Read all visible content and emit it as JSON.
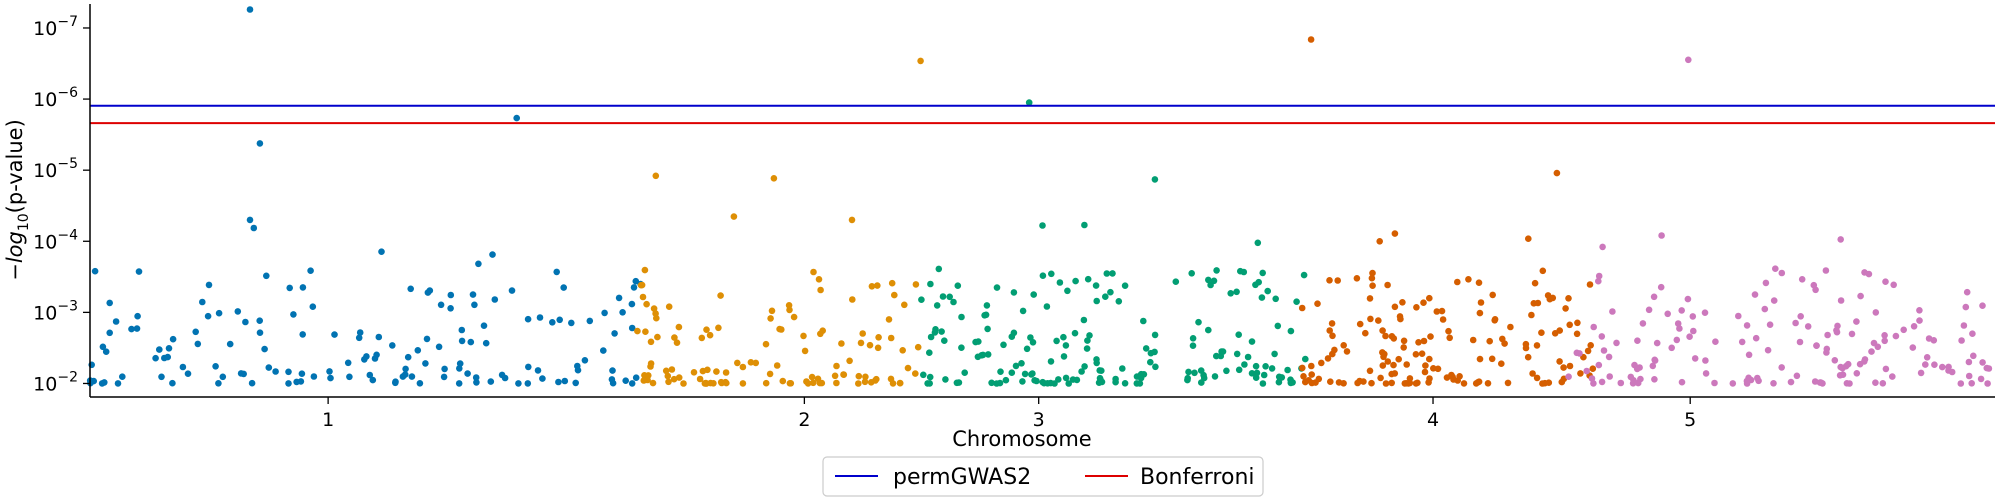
{
  "chart_data": {
    "type": "scatter",
    "title": "",
    "xlabel": "Chromosome",
    "ylabel_prefix": "−",
    "ylabel_log": "log",
    "ylabel_sub": "10",
    "ylabel_suffix": "(p-value)",
    "x_ticks": [
      {
        "label": "1",
        "pos": 0.125
      },
      {
        "label": "2",
        "pos": 0.375
      },
      {
        "label": "3",
        "pos": 0.498
      },
      {
        "label": "4",
        "pos": 0.705
      },
      {
        "label": "5",
        "pos": 0.84
      }
    ],
    "y_ticks": [
      {
        "value": 1e-07,
        "base": "10",
        "exp": "−7"
      },
      {
        "value": 1e-06,
        "base": "10",
        "exp": "−6"
      },
      {
        "value": 1e-05,
        "base": "10",
        "exp": "−5"
      },
      {
        "value": 0.0001,
        "base": "10",
        "exp": "−4"
      },
      {
        "value": 0.001,
        "base": "10",
        "exp": "−3"
      },
      {
        "value": 0.01,
        "base": "10",
        "exp": "−2"
      }
    ],
    "ylim": [
      0.0155,
      4.6e-08
    ],
    "ylog": true,
    "grid": false,
    "legend_position": "bottom-center",
    "series": [
      {
        "chromosome": "1",
        "color": "#0173b2",
        "range": [
          0.0,
          0.29
        ],
        "n": 150,
        "seed": 11,
        "extra": [
          [
            0.084,
            5.5e-08
          ],
          [
            0.224,
            1.85e-06
          ],
          [
            0.0892,
            4.2e-06
          ],
          [
            0.084,
            5e-05
          ],
          [
            0.086,
            6.5e-05
          ],
          [
            0.153,
            0.00014
          ],
          [
            0.245,
            0.00027
          ]
        ]
      },
      {
        "chromosome": "2",
        "color": "#de8f05",
        "range": [
          0.285,
          0.435
        ],
        "n": 120,
        "seed": 23,
        "extra": [
          [
            0.436,
            2.9e-07
          ],
          [
            0.297,
            1.2e-05
          ],
          [
            0.359,
            1.3e-05
          ],
          [
            0.338,
            4.5e-05
          ],
          [
            0.4,
            5e-05
          ]
        ]
      },
      {
        "chromosome": "3",
        "color": "#029e73",
        "range": [
          0.435,
          0.56
        ],
        "n": 120,
        "seed": 37,
        "extra": [
          [
            0.493,
            1.12e-06
          ],
          [
            0.559,
            1.35e-05
          ],
          [
            0.57,
            0.00037
          ],
          [
            0.5,
            6e-05
          ],
          [
            0.522,
            5.9e-05
          ]
        ]
      },
      {
        "chromosome": "3b",
        "color": "#029e73",
        "range": [
          0.575,
          0.64
        ],
        "n": 60,
        "seed": 41,
        "extra": [
          [
            0.59,
            0.00036
          ],
          [
            0.613,
            0.000105
          ]
        ]
      },
      {
        "chromosome": "3c",
        "color": "#d55e00",
        "range": [
          0.635,
          0.66
        ],
        "n": 25,
        "seed": 53,
        "extra": [
          [
            0.641,
            1.45e-07
          ]
        ]
      },
      {
        "chromosome": "4",
        "color": "#d55e00",
        "range": [
          0.665,
          0.79
        ],
        "n": 130,
        "seed": 59,
        "extra": [
          [
            0.77,
            1.1e-05
          ],
          [
            0.685,
            7.8e-05
          ],
          [
            0.677,
            0.0001
          ],
          [
            0.755,
            9.2e-05
          ]
        ]
      },
      {
        "chromosome": "5",
        "color": "#cc78bc",
        "range": [
          0.775,
          1.0
        ],
        "n": 160,
        "seed": 71,
        "extra": [
          [
            0.839,
            2.8e-07
          ],
          [
            0.825,
            8.3e-05
          ],
          [
            0.919,
            9.4e-05
          ],
          [
            0.794,
            0.00012
          ]
        ]
      }
    ],
    "thresholds": [
      {
        "name": "permGWAS2",
        "value": 1.24e-06,
        "color": "#0000cc"
      },
      {
        "name": "Bonferroni",
        "value": 2.18e-06,
        "color": "#dd0000"
      }
    ]
  },
  "legend": {
    "items": [
      {
        "label": "permGWAS2",
        "color": "#0000cc"
      },
      {
        "label": "Bonferroni",
        "color": "#dd0000"
      }
    ]
  }
}
